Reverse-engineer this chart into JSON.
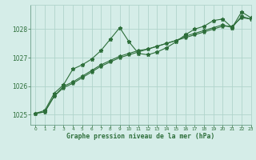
{
  "xlabel": "Graphe pression niveau de la mer (hPa)",
  "background_color": "#d5ede8",
  "grid_color": "#b0d4cc",
  "line_color": "#2d6e3a",
  "xmin": -0.5,
  "xmax": 23,
  "ymin": 1024.65,
  "ymax": 1028.85,
  "yticks": [
    1025,
    1026,
    1027,
    1028
  ],
  "xticks": [
    0,
    1,
    2,
    3,
    4,
    5,
    6,
    7,
    8,
    9,
    10,
    11,
    12,
    13,
    14,
    15,
    16,
    17,
    18,
    19,
    20,
    21,
    22,
    23
  ],
  "series_jagged_x": [
    0,
    1,
    2,
    3,
    4,
    5,
    6,
    7,
    8,
    9,
    10,
    11,
    12,
    13,
    14,
    15,
    16,
    17,
    18,
    19,
    20,
    21,
    22,
    23
  ],
  "series_jagged_y": [
    1025.05,
    1025.15,
    1025.75,
    1026.05,
    1026.6,
    1026.75,
    1026.95,
    1027.25,
    1027.65,
    1028.05,
    1027.55,
    1027.15,
    1027.1,
    1027.2,
    1027.35,
    1027.55,
    1027.8,
    1028.0,
    1028.1,
    1028.3,
    1028.35,
    1028.05,
    1028.6,
    1028.4
  ],
  "series_smooth1_x": [
    0,
    1,
    2,
    3,
    4,
    5,
    6,
    7,
    8,
    9,
    10,
    11,
    12,
    13,
    14,
    15,
    16,
    17,
    18,
    19,
    20,
    21,
    22,
    23
  ],
  "series_smooth1_y": [
    1025.05,
    1025.1,
    1025.65,
    1025.95,
    1026.1,
    1026.3,
    1026.5,
    1026.7,
    1026.85,
    1027.0,
    1027.1,
    1027.2,
    1027.3,
    1027.4,
    1027.5,
    1027.6,
    1027.7,
    1027.8,
    1027.9,
    1028.0,
    1028.1,
    1028.1,
    1028.4,
    1028.35
  ],
  "series_smooth2_x": [
    0,
    1,
    2,
    3,
    4,
    5,
    6,
    7,
    8,
    9,
    10,
    11,
    12,
    13,
    14,
    15,
    16,
    17,
    18,
    19,
    20,
    21,
    22,
    23
  ],
  "series_smooth2_y": [
    1025.05,
    1025.1,
    1025.65,
    1026.0,
    1026.15,
    1026.35,
    1026.55,
    1026.75,
    1026.9,
    1027.05,
    1027.15,
    1027.25,
    1027.3,
    1027.4,
    1027.5,
    1027.6,
    1027.75,
    1027.85,
    1027.95,
    1028.05,
    1028.15,
    1028.05,
    1028.45,
    1028.35
  ]
}
